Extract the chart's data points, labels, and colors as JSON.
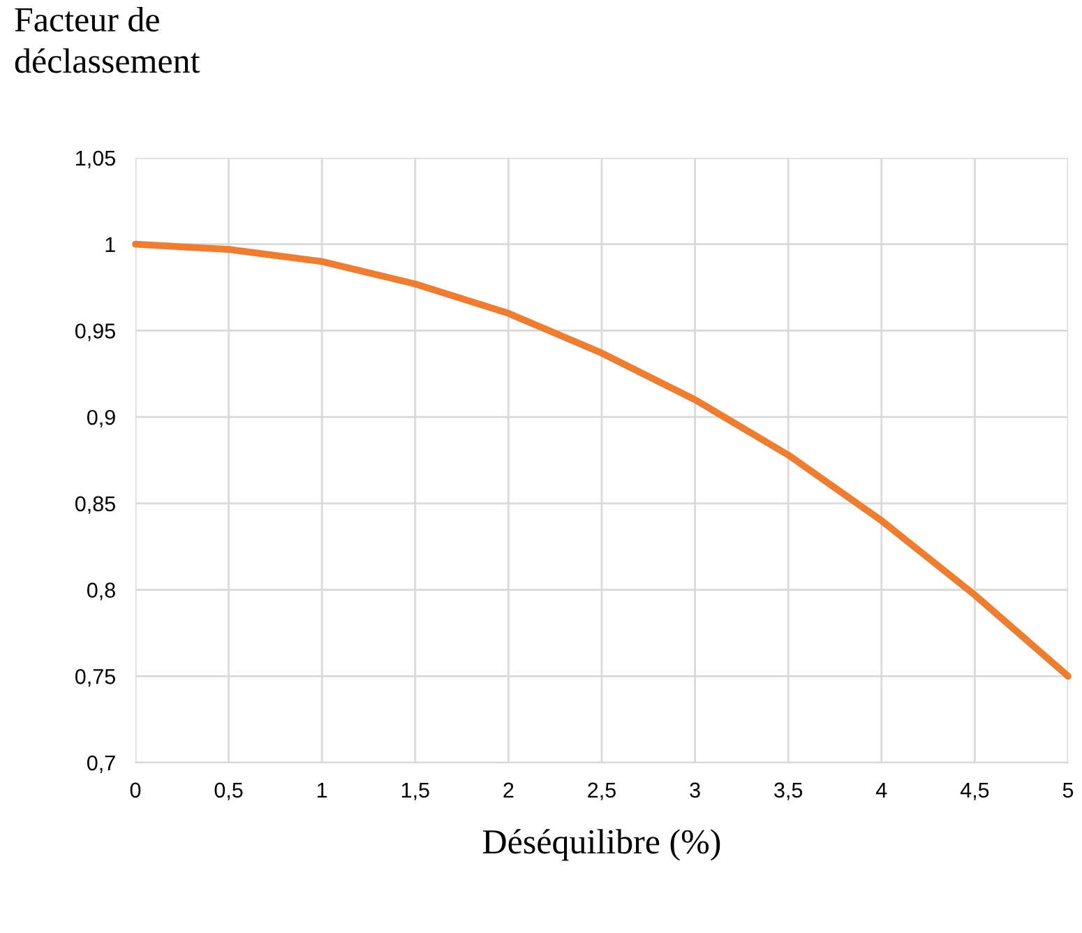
{
  "chart_data": {
    "type": "line",
    "ylabel": "Facteur de\ndéclassement",
    "xlabel": "Déséquilibre (%)",
    "x": [
      0,
      0.5,
      1,
      1.5,
      2,
      2.5,
      3,
      3.5,
      4,
      4.5,
      5
    ],
    "series": [
      {
        "color": "#ed7d31",
        "values": [
          1.0,
          0.997,
          0.99,
          0.977,
          0.96,
          0.937,
          0.91,
          0.878,
          0.84,
          0.797,
          0.75
        ]
      }
    ],
    "xlim": [
      0,
      5
    ],
    "ylim": [
      0.7,
      1.05
    ],
    "xticks": [
      0,
      {
        "value": 0.5,
        "label": "0,5"
      },
      1,
      {
        "value": 1.5,
        "label": "1,5"
      },
      2,
      {
        "value": 2.5,
        "label": "2,5"
      },
      3,
      {
        "value": 3.5,
        "label": "3,5"
      },
      4,
      {
        "value": 4.5,
        "label": "4,5"
      },
      5
    ],
    "yticks": [
      {
        "value": 0.7,
        "label": "0,7"
      },
      {
        "value": 0.75,
        "label": "0,75"
      },
      {
        "value": 0.8,
        "label": "0,8"
      },
      {
        "value": 0.85,
        "label": "0,85"
      },
      {
        "value": 0.9,
        "label": "0,9"
      },
      {
        "value": 0.95,
        "label": "0,95"
      },
      1,
      {
        "value": 1.05,
        "label": "1,05"
      }
    ],
    "grid": true,
    "line_style": "solid"
  }
}
